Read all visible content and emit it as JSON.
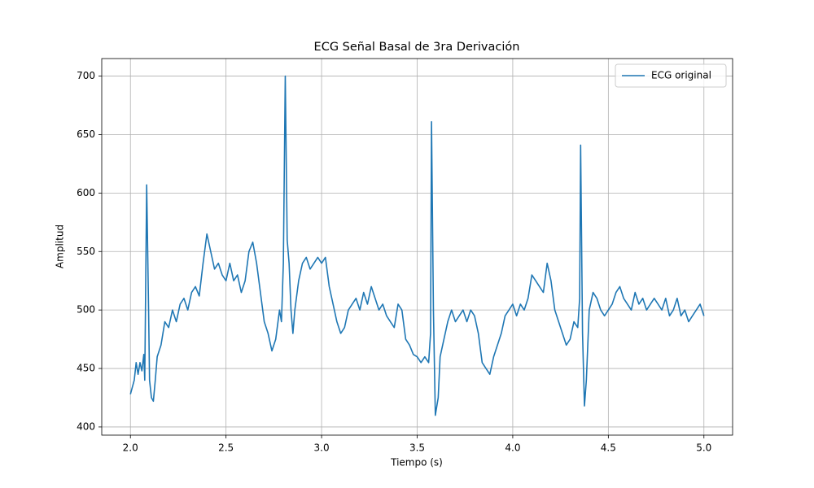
{
  "chart_data": {
    "type": "line",
    "title": "ECG Señal Basal de 3ra Derivación",
    "x_label": "Tiempo (s)",
    "y_label": "Amplitud",
    "xlim": [
      1.85,
      5.15
    ],
    "ylim": [
      393,
      715
    ],
    "xticks": [
      {
        "value": 2,
        "label": "2.0"
      },
      2.5,
      {
        "value": 3,
        "label": "3.0"
      },
      3.5,
      {
        "value": 4,
        "label": "4.0"
      },
      4.5,
      {
        "value": 5,
        "label": "5.0"
      }
    ],
    "yticks": [
      400,
      450,
      500,
      550,
      600,
      650,
      700
    ],
    "grid": true,
    "legend": "upper right",
    "x": [
      2.0,
      2.02,
      2.03,
      2.04,
      2.05,
      2.06,
      2.07,
      2.075,
      2.085,
      2.095,
      2.1,
      2.11,
      2.12,
      2.13,
      2.14,
      2.16,
      2.18,
      2.2,
      2.22,
      2.24,
      2.26,
      2.28,
      2.3,
      2.32,
      2.34,
      2.36,
      2.38,
      2.4,
      2.42,
      2.44,
      2.46,
      2.48,
      2.5,
      2.52,
      2.54,
      2.56,
      2.58,
      2.6,
      2.62,
      2.64,
      2.66,
      2.68,
      2.7,
      2.72,
      2.74,
      2.76,
      2.78,
      2.79,
      2.8,
      2.81,
      2.82,
      2.83,
      2.84,
      2.85,
      2.86,
      2.88,
      2.9,
      2.92,
      2.94,
      2.96,
      2.98,
      3.0,
      3.02,
      3.04,
      3.06,
      3.08,
      3.1,
      3.12,
      3.14,
      3.16,
      3.18,
      3.2,
      3.22,
      3.24,
      3.26,
      3.28,
      3.3,
      3.32,
      3.34,
      3.36,
      3.38,
      3.4,
      3.42,
      3.44,
      3.46,
      3.48,
      3.5,
      3.52,
      3.54,
      3.56,
      3.57,
      3.575,
      3.585,
      3.595,
      3.61,
      3.62,
      3.64,
      3.66,
      3.68,
      3.7,
      3.72,
      3.74,
      3.76,
      3.78,
      3.8,
      3.82,
      3.84,
      3.86,
      3.88,
      3.9,
      3.92,
      3.94,
      3.96,
      3.98,
      4.0,
      4.02,
      4.04,
      4.06,
      4.08,
      4.1,
      4.12,
      4.14,
      4.16,
      4.18,
      4.2,
      4.22,
      4.24,
      4.26,
      4.28,
      4.3,
      4.32,
      4.34,
      4.35,
      4.355,
      4.365,
      4.375,
      4.385,
      4.4,
      4.42,
      4.44,
      4.46,
      4.48,
      4.5,
      4.52,
      4.54,
      4.56,
      4.58,
      4.6,
      4.62,
      4.64,
      4.66,
      4.68,
      4.7,
      4.72,
      4.74,
      4.76,
      4.78,
      4.8,
      4.82,
      4.84,
      4.86,
      4.88,
      4.9,
      4.92,
      4.94,
      4.96,
      4.98,
      5.0
    ],
    "series": [
      {
        "name": "ECG original",
        "color": "#1f77b4",
        "values": [
          428,
          440,
          455,
          445,
          455,
          448,
          462,
          440,
          607,
          500,
          440,
          425,
          422,
          440,
          460,
          470,
          490,
          485,
          500,
          490,
          505,
          510,
          500,
          515,
          520,
          512,
          540,
          565,
          550,
          535,
          540,
          530,
          525,
          540,
          525,
          530,
          515,
          525,
          550,
          558,
          540,
          515,
          490,
          480,
          465,
          475,
          500,
          490,
          540,
          700,
          560,
          540,
          500,
          480,
          500,
          525,
          540,
          545,
          535,
          540,
          545,
          540,
          545,
          520,
          505,
          490,
          480,
          485,
          500,
          505,
          510,
          500,
          515,
          505,
          520,
          510,
          500,
          505,
          495,
          490,
          485,
          505,
          500,
          475,
          470,
          462,
          460,
          455,
          460,
          455,
          480,
          661,
          500,
          410,
          425,
          460,
          475,
          490,
          500,
          490,
          495,
          500,
          490,
          500,
          495,
          480,
          455,
          450,
          445,
          460,
          470,
          480,
          495,
          500,
          505,
          495,
          505,
          500,
          510,
          530,
          525,
          520,
          515,
          540,
          525,
          500,
          490,
          480,
          470,
          475,
          490,
          485,
          510,
          641,
          480,
          418,
          440,
          500,
          515,
          510,
          500,
          495,
          500,
          505,
          515,
          520,
          510,
          505,
          500,
          515,
          505,
          510,
          500,
          505,
          510,
          505,
          500,
          510,
          495,
          500,
          510,
          495,
          500,
          490,
          495,
          500,
          505,
          495
        ]
      }
    ]
  }
}
